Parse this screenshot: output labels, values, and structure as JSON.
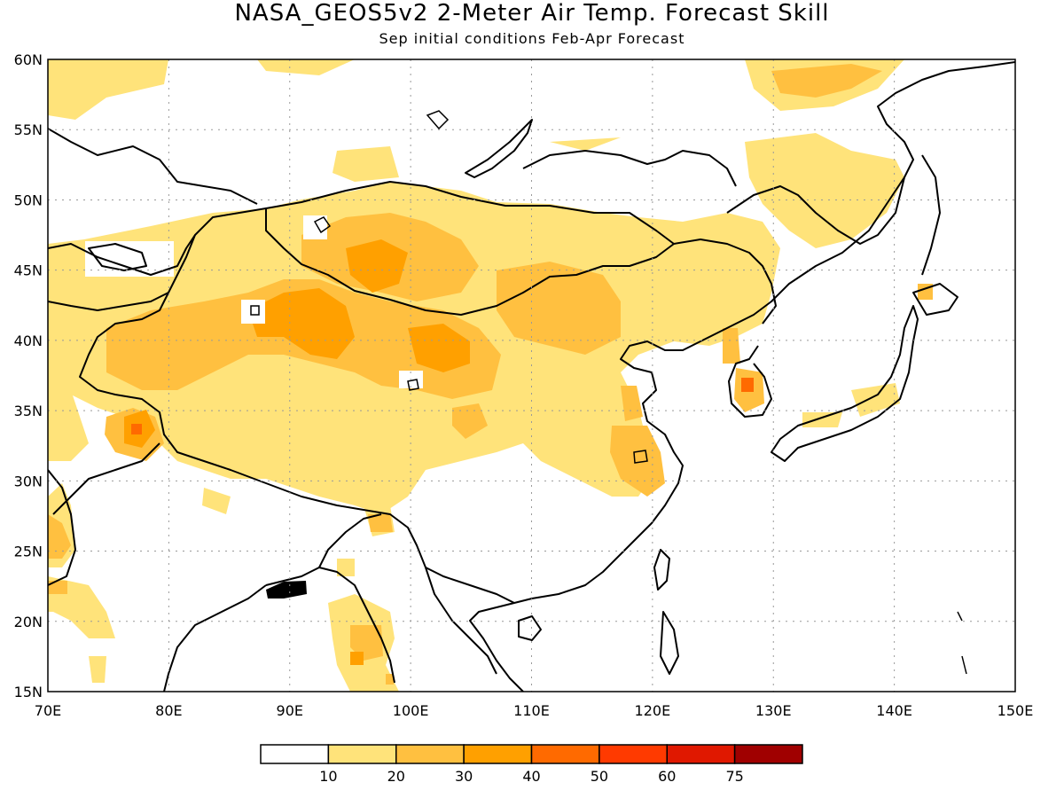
{
  "title": "NASA_GEOS5v2 2-Meter Air Temp. Forecast Skill",
  "subtitle": "Sep initial conditions  Feb-Apr Forecast",
  "map": {
    "lon_range": [
      70,
      150
    ],
    "lat_range": [
      15,
      60
    ],
    "lon_labels": [
      "70E",
      "80E",
      "90E",
      "100E",
      "110E",
      "120E",
      "130E",
      "140E",
      "150E"
    ],
    "lat_labels": [
      "15N",
      "20N",
      "25N",
      "30N",
      "35N",
      "40N",
      "45N",
      "50N",
      "55N",
      "60N"
    ],
    "gridlines": true
  },
  "colorbar": {
    "colors": [
      "#ffffff",
      "#ffe37a",
      "#ffc040",
      "#ffa000",
      "#ff6a00",
      "#ff3a00",
      "#e01800",
      "#a00000"
    ],
    "labels": [
      "10",
      "20",
      "30",
      "40",
      "50",
      "60",
      "75"
    ]
  }
}
